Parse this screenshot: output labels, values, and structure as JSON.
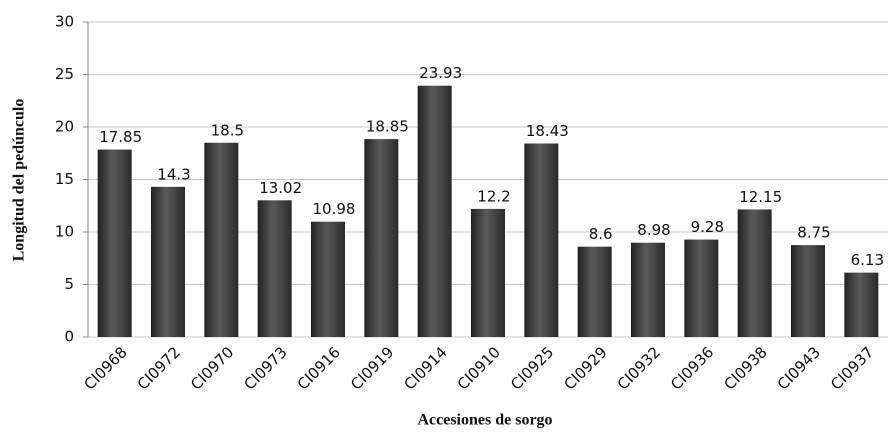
{
  "chart_data": {
    "type": "bar",
    "x_label": "Accesiones de sorgo",
    "y_label": "Longitud del pedúnculo",
    "categories": [
      "CI0968",
      "CI0972",
      "CI0970",
      "CI0973",
      "CI0916",
      "CI0919",
      "CI0914",
      "CI0910",
      "CI0925",
      "CI0929",
      "CI0932",
      "CI0936",
      "CI0938",
      "CI0943",
      "CI0937"
    ],
    "values": [
      17.85,
      14.3,
      18.5,
      13.02,
      10.98,
      18.85,
      23.93,
      12.2,
      18.43,
      8.6,
      8.98,
      9.28,
      12.15,
      8.75,
      6.13
    ],
    "color": "#5a5a5a",
    "ylim": [
      0,
      30
    ],
    "yticks": [
      0,
      5,
      10,
      15,
      20,
      25,
      30
    ],
    "grid": true
  }
}
